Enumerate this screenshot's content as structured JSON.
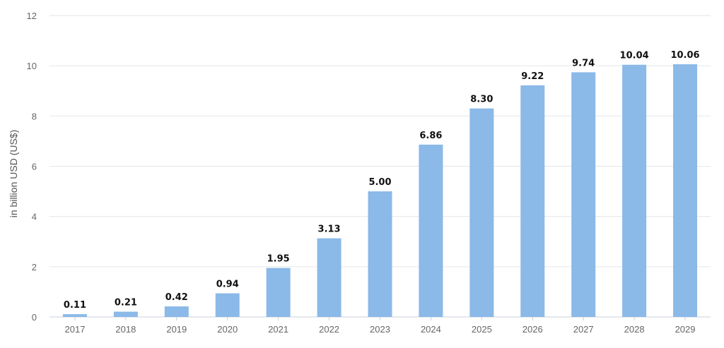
{
  "chart_data": {
    "type": "bar",
    "title": "",
    "xlabel": "",
    "ylabel": "in billion USD (US$)",
    "categories": [
      "2017",
      "2018",
      "2019",
      "2020",
      "2021",
      "2022",
      "2023",
      "2024",
      "2025",
      "2026",
      "2027",
      "2028",
      "2029"
    ],
    "values": [
      0.11,
      0.21,
      0.42,
      0.94,
      1.95,
      3.13,
      5.0,
      6.86,
      8.3,
      9.22,
      9.74,
      10.04,
      10.06
    ],
    "value_labels": [
      "0.11",
      "0.21",
      "0.42",
      "0.94",
      "1.95",
      "3.13",
      "5.00",
      "6.86",
      "8.30",
      "9.22",
      "9.74",
      "10.04",
      "10.06"
    ],
    "ylim": [
      0,
      12
    ],
    "yticks": [
      0,
      2,
      4,
      6,
      8,
      10,
      12
    ],
    "ytick_labels": [
      "0",
      "2",
      "4",
      "6",
      "8",
      "10",
      "12"
    ],
    "grid": true,
    "legend": "none",
    "colors": {
      "bar": "#8bb9e8",
      "grid": "#e3e6ea",
      "axis": "#c8d0da"
    }
  }
}
